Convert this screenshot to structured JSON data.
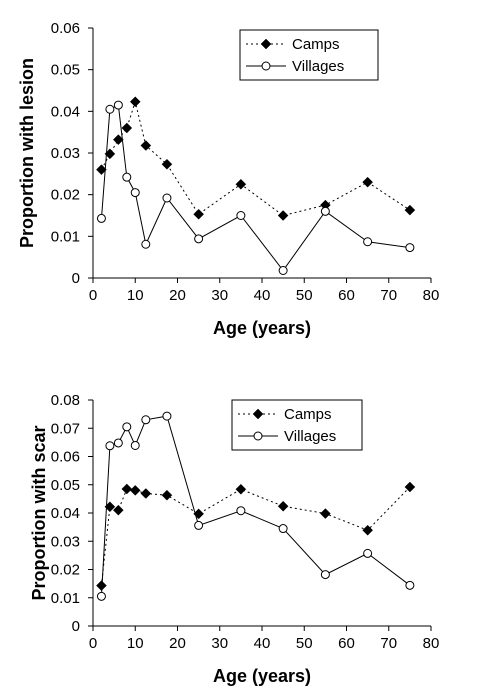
{
  "chart_data": [
    {
      "type": "line",
      "title": "",
      "xlabel": "Age (years)",
      "ylabel": "Proportion with lesion",
      "xlim": [
        0,
        80
      ],
      "ylim": [
        0,
        0.06
      ],
      "xticks": [
        "0",
        "10",
        "20",
        "30",
        "40",
        "50",
        "60",
        "70",
        "80"
      ],
      "yticks": [
        "0",
        "0.01",
        "0.02",
        "0.03",
        "0.04",
        "0.05",
        "0.06"
      ],
      "grid": false,
      "legend_position": "top-right",
      "series": [
        {
          "name": "Camps",
          "style": "dotted",
          "marker": "filled-diamond",
          "color": "#000000",
          "x": [
            2,
            4,
            6,
            8,
            10,
            12.5,
            17.5,
            25,
            35,
            45,
            55,
            65,
            75
          ],
          "y": [
            0.026,
            0.0298,
            0.0332,
            0.036,
            0.0423,
            0.0318,
            0.0273,
            0.0153,
            0.0225,
            0.015,
            0.0175,
            0.023,
            0.0163
          ]
        },
        {
          "name": "Villages",
          "style": "solid",
          "marker": "open-circle",
          "color": "#000000",
          "x": [
            2,
            4,
            6,
            8,
            10,
            12.5,
            17.5,
            25,
            35,
            45,
            55,
            65,
            75
          ],
          "y": [
            0.0143,
            0.0405,
            0.0415,
            0.0242,
            0.0205,
            0.0081,
            0.0192,
            0.0094,
            0.015,
            0.0018,
            0.016,
            0.0087,
            0.0073
          ]
        }
      ]
    },
    {
      "type": "line",
      "title": "",
      "xlabel": "Age (years)",
      "ylabel": "Proportion with scar",
      "xlim": [
        0,
        80
      ],
      "ylim": [
        0,
        0.08
      ],
      "xticks": [
        "0",
        "10",
        "20",
        "30",
        "40",
        "50",
        "60",
        "70",
        "80"
      ],
      "yticks": [
        "0",
        "0.01",
        "0.02",
        "0.03",
        "0.04",
        "0.05",
        "0.06",
        "0.07",
        "0.08"
      ],
      "grid": false,
      "legend_position": "top-right",
      "series": [
        {
          "name": "Camps",
          "style": "dotted",
          "marker": "filled-diamond",
          "color": "#000000",
          "x": [
            2,
            4,
            6,
            8,
            10,
            12.5,
            17.5,
            25,
            35,
            45,
            55,
            65,
            75
          ],
          "y": [
            0.0143,
            0.0422,
            0.041,
            0.0485,
            0.048,
            0.0469,
            0.0463,
            0.0397,
            0.0484,
            0.0424,
            0.0398,
            0.0339,
            0.0492
          ]
        },
        {
          "name": "Villages",
          "style": "solid",
          "marker": "open-circle",
          "color": "#000000",
          "x": [
            2,
            4,
            6,
            8,
            10,
            12.5,
            17.5,
            25,
            35,
            45,
            55,
            65,
            75
          ],
          "y": [
            0.0105,
            0.0638,
            0.0648,
            0.0705,
            0.0639,
            0.073,
            0.0743,
            0.0356,
            0.0408,
            0.0345,
            0.0182,
            0.0257,
            0.0144
          ]
        }
      ]
    }
  ]
}
